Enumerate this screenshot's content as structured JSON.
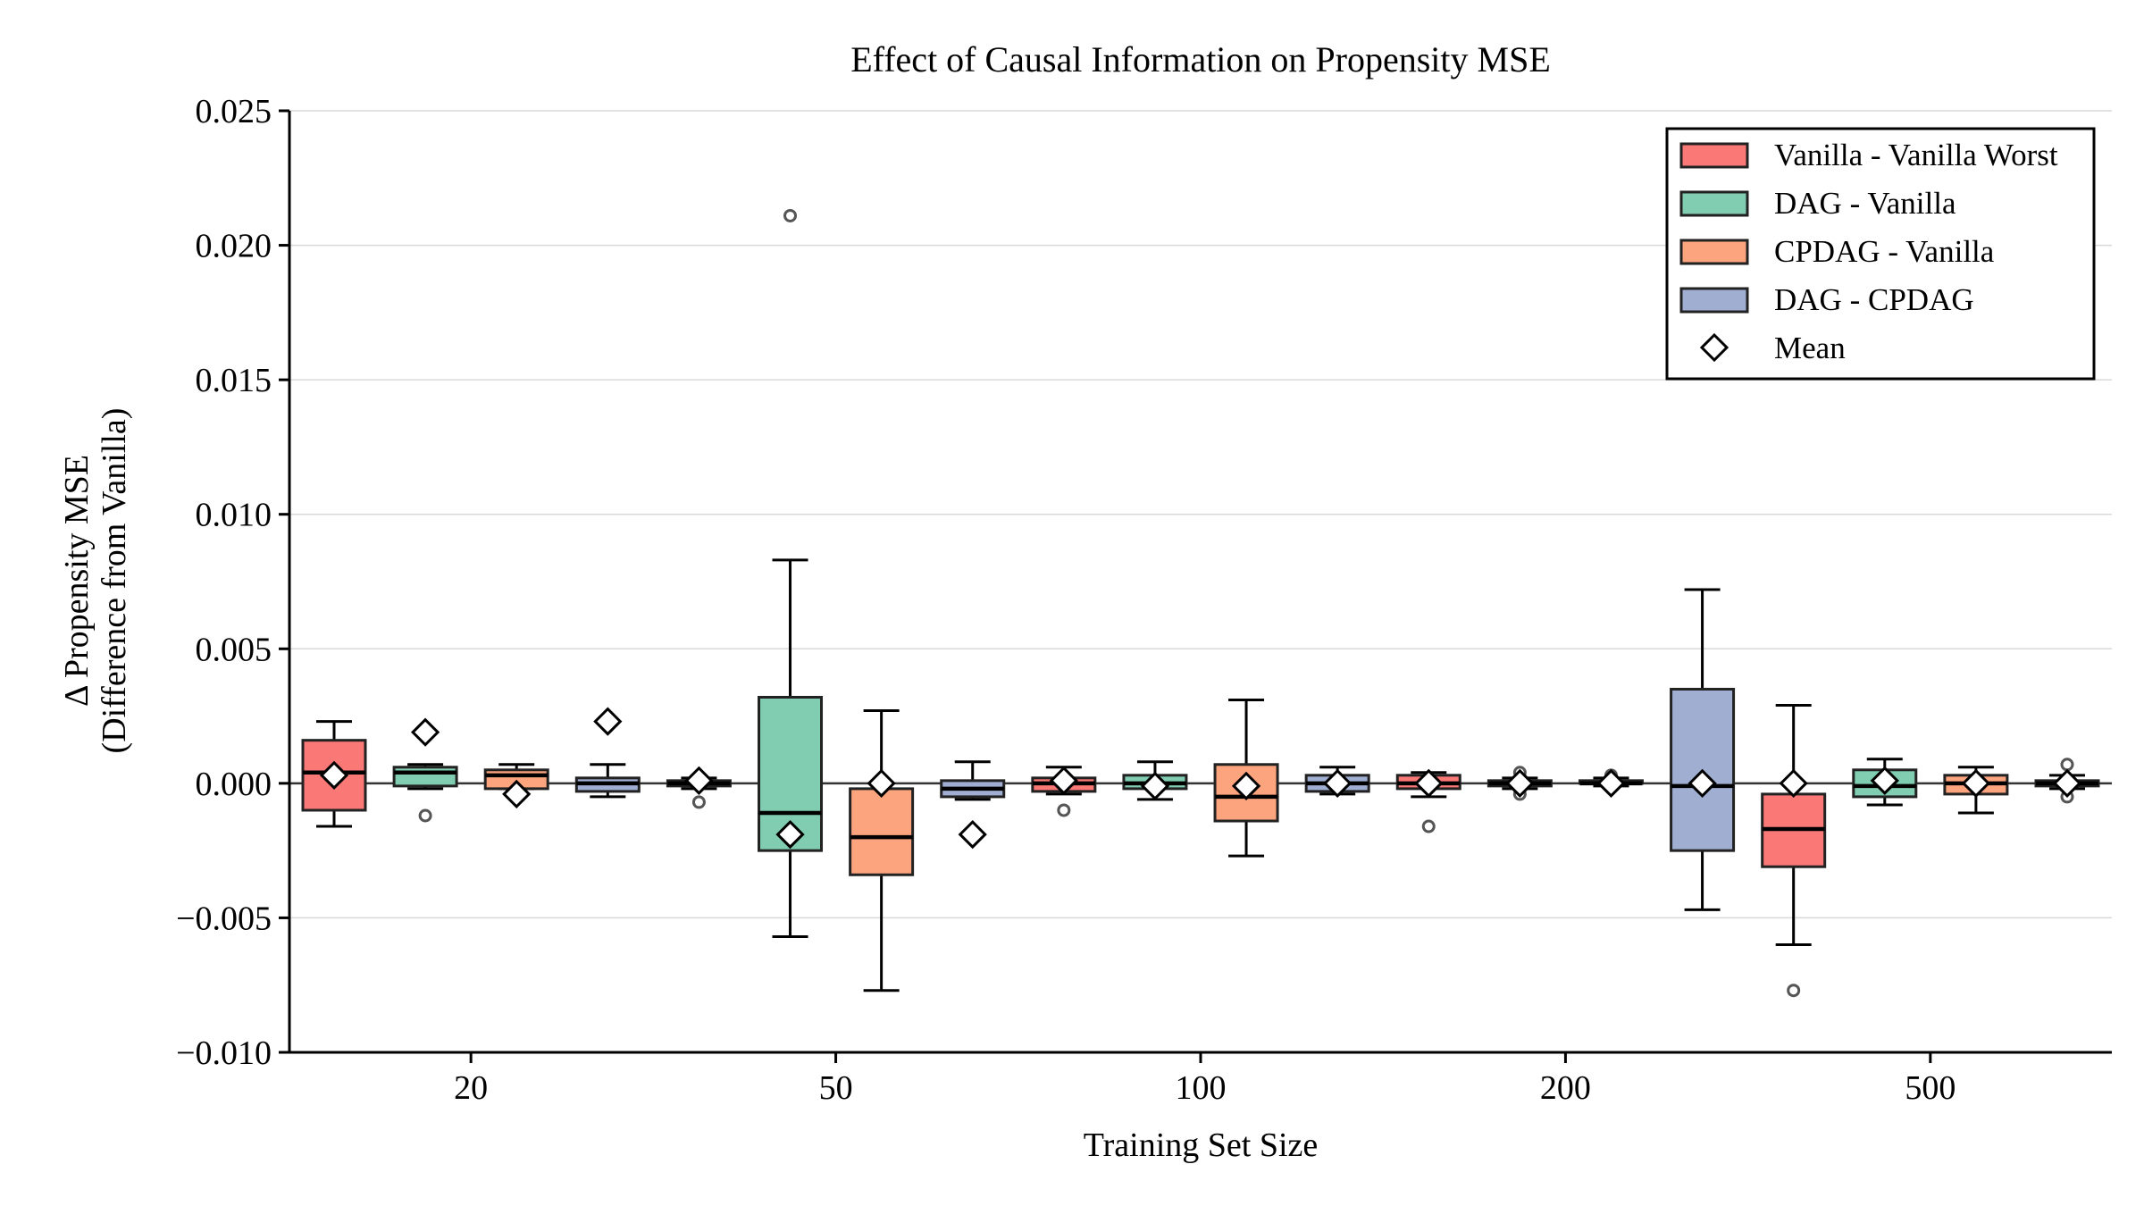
{
  "chart_data": {
    "type": "box",
    "title": "Effect of Causal Information on Propensity MSE",
    "xlabel": "Training Set Size",
    "ylabel": "Δ Propensity MSE",
    "ylabel_sub": "(Difference from Vanilla)",
    "ylim": [
      -0.01,
      0.025
    ],
    "yticks": [
      -0.01,
      -0.005,
      0.0,
      0.005,
      0.01,
      0.015,
      0.02,
      0.025
    ],
    "ytick_labels": [
      "−0.010",
      "−0.005",
      "0.000",
      "0.005",
      "0.010",
      "0.015",
      "0.020",
      "0.025"
    ],
    "categories": [
      "20",
      "50",
      "100",
      "200",
      "500"
    ],
    "grid": "horizontal",
    "legend_position": "top-right",
    "colors": {
      "Vanilla - Vanilla Worst": "#fa7876",
      "DAG - Vanilla": "#80cdb1",
      "CPDAG - Vanilla": "#fca47e",
      "DAG - CPDAG": "#a0aed2"
    },
    "legend": [
      "Vanilla - Vanilla Worst",
      "DAG - Vanilla",
      "CPDAG - Vanilla",
      "DAG - CPDAG",
      "Mean"
    ],
    "boxes": [
      {
        "series": "Vanilla - Vanilla Worst",
        "min": -0.0016,
        "q1": -0.001,
        "median": 0.0004,
        "q3": 0.0016,
        "max": 0.0023,
        "mean": 0.0003,
        "outliers": []
      },
      {
        "series": "DAG - Vanilla",
        "min": -0.0002,
        "q1": -0.0001,
        "median": 0.0004,
        "q3": 0.0006,
        "max": 0.0007,
        "mean": 0.0019,
        "outliers": [
          -0.0012
        ]
      },
      {
        "series": "CPDAG - Vanilla",
        "min": -0.0002,
        "q1": -0.0002,
        "median": 0.0003,
        "q3": 0.0005,
        "max": 0.0007,
        "mean": -0.0004,
        "outliers": []
      },
      {
        "series": "DAG - CPDAG",
        "min": -0.0005,
        "q1": -0.0003,
        "median": 0.0,
        "q3": 0.0002,
        "max": 0.0007,
        "mean": 0.0023,
        "outliers": []
      },
      {
        "series": "Vanilla - Vanilla Worst",
        "min": -0.0002,
        "q1": -0.0001,
        "median": 0.0,
        "q3": 0.0001,
        "max": 0.0002,
        "mean": 0.0001,
        "outliers": [
          -0.0007
        ]
      },
      {
        "series": "DAG - Vanilla",
        "min": -0.0057,
        "q1": -0.0025,
        "median": -0.0011,
        "q3": 0.0032,
        "max": 0.0083,
        "mean": -0.0019,
        "outliers": [
          0.0211
        ]
      },
      {
        "series": "CPDAG - Vanilla",
        "min": -0.0077,
        "q1": -0.0034,
        "median": -0.002,
        "q3": -0.0002,
        "max": 0.0027,
        "mean": 0.0,
        "outliers": []
      },
      {
        "series": "DAG - CPDAG",
        "min": -0.0006,
        "q1": -0.0005,
        "median": -0.0002,
        "q3": 0.0001,
        "max": 0.0008,
        "mean": -0.0019,
        "outliers": []
      },
      {
        "series": "Vanilla - Vanilla Worst",
        "min": -0.0004,
        "q1": -0.0003,
        "median": 0.0,
        "q3": 0.0002,
        "max": 0.0006,
        "mean": 0.0001,
        "outliers": [
          -0.001
        ]
      },
      {
        "series": "DAG - Vanilla",
        "min": -0.0006,
        "q1": -0.0002,
        "median": 0.0,
        "q3": 0.0003,
        "max": 0.0008,
        "mean": -0.0001,
        "outliers": []
      },
      {
        "series": "CPDAG - Vanilla",
        "min": -0.0027,
        "q1": -0.0014,
        "median": -0.0005,
        "q3": 0.0007,
        "max": 0.0031,
        "mean": -0.0001,
        "outliers": []
      },
      {
        "series": "DAG - CPDAG",
        "min": -0.0004,
        "q1": -0.0003,
        "median": 0.0,
        "q3": 0.0003,
        "max": 0.0006,
        "mean": 0.0,
        "outliers": []
      },
      {
        "series": "Vanilla - Vanilla Worst",
        "min": -0.0005,
        "q1": -0.0002,
        "median": 0.0,
        "q3": 0.0003,
        "max": 0.0004,
        "mean": 0.0,
        "outliers": [
          -0.0016
        ]
      },
      {
        "series": "DAG - Vanilla",
        "min": -0.0002,
        "q1": -0.0001,
        "median": 0.0,
        "q3": 0.0001,
        "max": 0.0002,
        "mean": 0.0,
        "outliers": [
          0.0004,
          -0.0004
        ]
      },
      {
        "series": "CPDAG - Vanilla",
        "min": -0.0001,
        "q1": 0.0,
        "median": 0.0,
        "q3": 0.0001,
        "max": 0.0002,
        "mean": 0.0,
        "outliers": [
          0.0003
        ]
      },
      {
        "series": "DAG - CPDAG",
        "min": -0.0047,
        "q1": -0.0025,
        "median": -0.0001,
        "q3": 0.0035,
        "max": 0.0072,
        "mean": 0.0,
        "outliers": []
      },
      {
        "series": "Vanilla - Vanilla Worst",
        "min": -0.006,
        "q1": -0.0031,
        "median": -0.0017,
        "q3": -0.0004,
        "max": 0.0029,
        "mean": 0.0,
        "outliers": [
          -0.0077
        ]
      },
      {
        "series": "DAG - Vanilla",
        "min": -0.0008,
        "q1": -0.0005,
        "median": -0.0001,
        "q3": 0.0005,
        "max": 0.0009,
        "mean": 0.0001,
        "outliers": []
      },
      {
        "series": "CPDAG - Vanilla",
        "min": -0.0011,
        "q1": -0.0004,
        "median": 0.0,
        "q3": 0.0003,
        "max": 0.0006,
        "mean": 0.0,
        "outliers": []
      },
      {
        "series": "DAG - CPDAG",
        "min": -0.0002,
        "q1": -0.0001,
        "median": 0.0,
        "q3": 0.0001,
        "max": 0.0003,
        "mean": 0.0,
        "outliers": [
          0.0007,
          -0.0005
        ]
      }
    ]
  }
}
